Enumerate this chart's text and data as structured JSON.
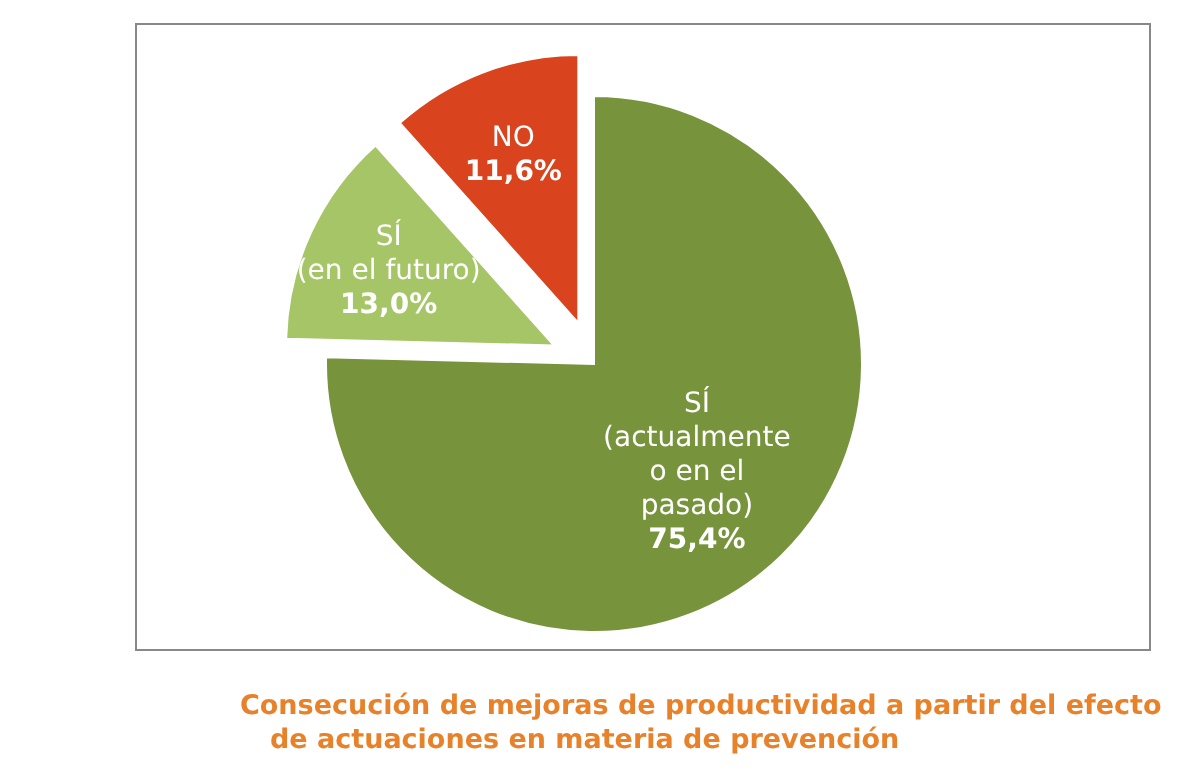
{
  "chart_data": {
    "type": "pie",
    "title": "Consecución de mejoras de productividad a partir del efecto\nde actuaciones en materia de prevención",
    "categories": [
      "SÍ\n(actualmente\no en el\npasado)",
      "SÍ\n(en el futuro)",
      "NO"
    ],
    "values": [
      75.4,
      13.0,
      11.6
    ],
    "colors": [
      "#77933c",
      "#a5c566",
      "#d9431e"
    ],
    "value_labels": [
      "75,4%",
      "13,0%",
      "11,6%"
    ]
  }
}
